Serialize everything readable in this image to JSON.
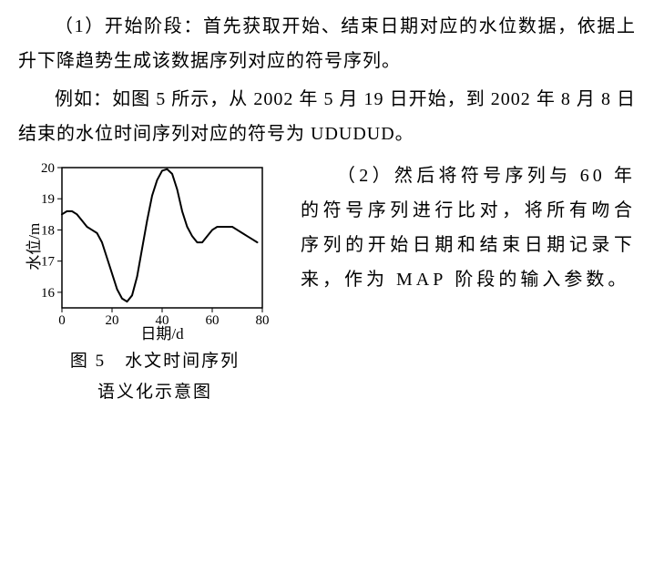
{
  "para1": "（1）开始阶段：首先获取开始、结束日期对应的水位数据，依据上升下降趋势生成该数据序列对应的符号序列。",
  "para2_pre": "例如：如图 ",
  "para2_fignum": "5",
  "para2_mid1": " 所示，从 ",
  "para2_date1": "2002 年 5 月 19 日",
  "para2_mid2": "开始，到 ",
  "para2_date2": "2002 年 8 月 8 日",
  "para2_mid3": "结束的水位时间序列对应的符号为 ",
  "para2_sym": "UDUDUD",
  "para2_end": "。",
  "right_pre": "（2）然后将符号序列与 ",
  "right_num": "60",
  "right_mid1": " 年的符号序列进行比对，将所有吻合序列的开始日期和结束日期记录下来，作为 ",
  "right_map": "MAP",
  "right_end": " 阶段的输入参数。",
  "chart": {
    "type": "line",
    "xlabel": "日期/d",
    "ylabel": "水位/m",
    "caption_line1": "图 5　水文时间序列",
    "caption_line2": "语义化示意图",
    "xlim": [
      0,
      80
    ],
    "ylim": [
      15.5,
      20
    ],
    "xticks": [
      0,
      20,
      40,
      60,
      80
    ],
    "yticks": [
      16,
      17,
      18,
      19,
      20
    ],
    "line_color": "#000000",
    "line_width": 2,
    "background_color": "#ffffff",
    "axis_color": "#000000",
    "tick_fontsize": 15,
    "label_fontsize": 17,
    "data": [
      [
        0,
        18.5
      ],
      [
        2,
        18.6
      ],
      [
        4,
        18.6
      ],
      [
        6,
        18.5
      ],
      [
        8,
        18.3
      ],
      [
        10,
        18.1
      ],
      [
        12,
        18.0
      ],
      [
        14,
        17.9
      ],
      [
        16,
        17.6
      ],
      [
        18,
        17.1
      ],
      [
        20,
        16.6
      ],
      [
        22,
        16.1
      ],
      [
        24,
        15.8
      ],
      [
        26,
        15.7
      ],
      [
        28,
        15.9
      ],
      [
        30,
        16.5
      ],
      [
        32,
        17.4
      ],
      [
        34,
        18.3
      ],
      [
        36,
        19.1
      ],
      [
        38,
        19.6
      ],
      [
        40,
        19.9
      ],
      [
        42,
        19.95
      ],
      [
        44,
        19.8
      ],
      [
        46,
        19.3
      ],
      [
        48,
        18.6
      ],
      [
        50,
        18.1
      ],
      [
        52,
        17.8
      ],
      [
        54,
        17.6
      ],
      [
        56,
        17.6
      ],
      [
        58,
        17.8
      ],
      [
        60,
        18.0
      ],
      [
        62,
        18.1
      ],
      [
        64,
        18.1
      ],
      [
        66,
        18.1
      ],
      [
        68,
        18.1
      ],
      [
        70,
        18.0
      ],
      [
        72,
        17.9
      ],
      [
        74,
        17.8
      ],
      [
        76,
        17.7
      ],
      [
        78,
        17.6
      ]
    ]
  }
}
